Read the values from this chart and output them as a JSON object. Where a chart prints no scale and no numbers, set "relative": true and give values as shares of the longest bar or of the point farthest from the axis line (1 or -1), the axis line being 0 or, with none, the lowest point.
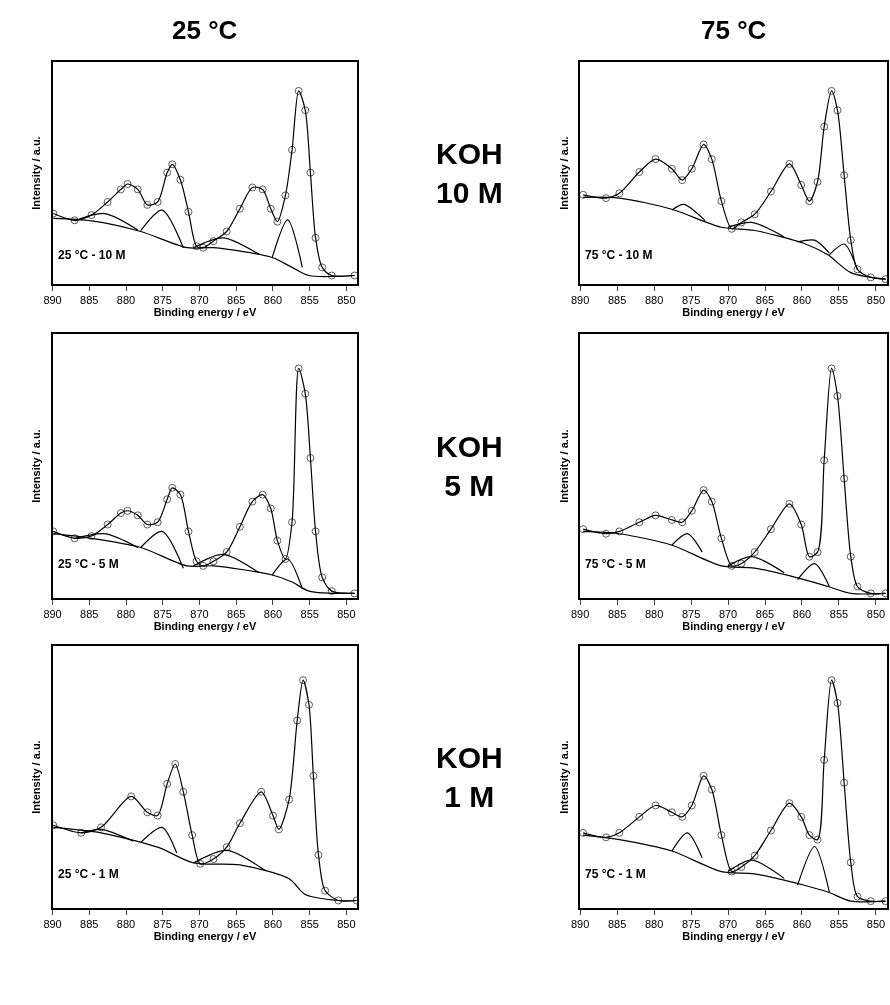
{
  "chart_data": [
    {
      "type": "scatter",
      "title": "25 °C",
      "xlabel": "Binding energy / eV",
      "ylabel": "Intensity / a.u.",
      "relative": true,
      "xlim": [
        890,
        848.5
      ],
      "xticks": [
        890,
        885,
        880,
        875,
        870,
        865,
        860,
        855,
        850
      ],
      "tick_labels": "x",
      "annotations": [
        "25 °C - 10 M"
      ],
      "series": [
        {
          "marker": "circle",
          "color": "#333333",
          "x": [
            889.9,
            887,
            884.7,
            882.5,
            880.7,
            879.8,
            878.4,
            877.1,
            875.7,
            874.4,
            873.7,
            872.6,
            871.5,
            870.4,
            869.5,
            868.1,
            866.3,
            864.5,
            862.8,
            861.4,
            860.3,
            859.4,
            858.3,
            857.4,
            856.5,
            855.6,
            854.9,
            854.2,
            853.3,
            852,
            848.9
          ],
          "values": [
            0.365,
            0.33,
            0.357,
            0.425,
            0.49,
            0.518,
            0.49,
            0.41,
            0.425,
            0.577,
            0.62,
            0.54,
            0.374,
            0.196,
            0.188,
            0.222,
            0.272,
            0.39,
            0.5,
            0.49,
            0.39,
            0.323,
            0.459,
            0.695,
            1.0,
            0.9,
            0.577,
            0.239,
            0.086,
            0.044,
            0.044
          ]
        },
        {
          "type": "line",
          "color": "#000000",
          "x": [
            889.9,
            887,
            884.7,
            882.5,
            880.7,
            879.8,
            878.4,
            877.1,
            875.7,
            874.4,
            873.7,
            872.6,
            871.5,
            870.4,
            869.5,
            868.1,
            866.3,
            864.5,
            862.8,
            861.4,
            860.3,
            859.4,
            858.3,
            857.4,
            856.5,
            855.6,
            854.9,
            854.2,
            853.3,
            852,
            848.9
          ],
          "values": [
            0.365,
            0.33,
            0.357,
            0.425,
            0.49,
            0.518,
            0.49,
            0.41,
            0.425,
            0.577,
            0.62,
            0.54,
            0.374,
            0.196,
            0.188,
            0.222,
            0.272,
            0.39,
            0.5,
            0.49,
            0.39,
            0.323,
            0.459,
            0.695,
            1.0,
            0.9,
            0.577,
            0.239,
            0.086,
            0.044,
            0.044
          ]
        },
        {
          "type": "line",
          "color": "#000000",
          "x": [
            889.9,
            884.7,
            878.0,
            871.7,
            868.1,
            860.1,
            857.4,
            855.1,
            848.9
          ],
          "values": [
            0.34,
            0.327,
            0.272,
            0.188,
            0.188,
            0.137,
            0.086,
            0.044,
            0.044
          ]
        },
        {
          "type": "line",
          "color": "#000000",
          "x": [
            887,
            882.9,
            878.4
          ],
          "values": [
            0.327,
            0.365,
            0.28
          ]
        },
        {
          "type": "line",
          "color": "#000000",
          "x": [
            878,
            875.1,
            872.2
          ],
          "values": [
            0.276,
            0.383,
            0.188
          ]
        },
        {
          "type": "line",
          "color": "#000000",
          "x": [
            870.8,
            866.8,
            861.9
          ],
          "values": [
            0.188,
            0.239,
            0.154
          ]
        },
        {
          "type": "line",
          "color": "#000000",
          "x": [
            860.1,
            858.0,
            856.0
          ],
          "values": [
            0.137,
            0.332,
            0.086
          ]
        }
      ]
    },
    {
      "type": "scatter",
      "title": "75 °C",
      "xlabel": "Binding energy / eV",
      "ylabel": "Intensity / a.u.",
      "relative": true,
      "xlim": [
        890,
        848.5
      ],
      "xticks": [
        890,
        885,
        880,
        875,
        870,
        865,
        860,
        855,
        850
      ],
      "tick_labels": "x",
      "annotations": [
        "75 °C - 10 M",
        "KOH\n10 M"
      ],
      "series": [
        {
          "marker": "circle",
          "color": "#333333",
          "x": [
            889.6,
            886.5,
            884.7,
            882.0,
            879.8,
            877.6,
            876.2,
            874.9,
            873.3,
            872.2,
            870.9,
            869.5,
            868.2,
            866.4,
            864.2,
            861.7,
            860.1,
            859.0,
            857.9,
            857.0,
            856.0,
            855.2,
            854.3,
            853.4,
            852.5,
            850.7,
            848.7
          ],
          "values": [
            0.462,
            0.445,
            0.47,
            0.58,
            0.647,
            0.597,
            0.538,
            0.597,
            0.723,
            0.647,
            0.429,
            0.286,
            0.319,
            0.361,
            0.479,
            0.622,
            0.513,
            0.429,
            0.529,
            0.815,
            1.0,
            0.9,
            0.563,
            0.227,
            0.076,
            0.034,
            0.025
          ]
        },
        {
          "type": "line",
          "color": "#000000",
          "x": [
            889.6,
            886.5,
            884.7,
            882.0,
            879.8,
            877.6,
            876.2,
            874.9,
            873.3,
            872.2,
            870.9,
            869.5,
            868.2,
            866.4,
            864.2,
            861.7,
            860.1,
            859.0,
            857.9,
            857.0,
            856.0,
            855.2,
            854.3,
            853.4,
            852.5,
            850.7,
            848.7
          ],
          "values": [
            0.462,
            0.445,
            0.47,
            0.58,
            0.647,
            0.597,
            0.538,
            0.597,
            0.723,
            0.647,
            0.429,
            0.286,
            0.319,
            0.361,
            0.479,
            0.622,
            0.513,
            0.429,
            0.529,
            0.815,
            1.0,
            0.9,
            0.563,
            0.227,
            0.076,
            0.034,
            0.025
          ]
        },
        {
          "type": "line",
          "color": "#000000",
          "x": [
            889.6,
            884.7,
            877.6,
            870.9,
            866.4,
            859.7,
            856.5,
            853.4,
            848.7
          ],
          "values": [
            0.449,
            0.445,
            0.387,
            0.294,
            0.277,
            0.21,
            0.151,
            0.059,
            0.025
          ]
        },
        {
          "type": "line",
          "color": "#000000",
          "x": [
            877.6,
            876.0,
            873.1
          ],
          "values": [
            0.382,
            0.412,
            0.328
          ]
        },
        {
          "type": "line",
          "color": "#000000",
          "x": [
            870.0,
            866.8,
            862.4
          ],
          "values": [
            0.294,
            0.319,
            0.244
          ]
        },
        {
          "type": "line",
          "color": "#000000",
          "x": [
            860.6,
            858.3,
            856.3
          ],
          "values": [
            0.218,
            0.227,
            0.16
          ]
        },
        {
          "type": "line",
          "color": "#000000",
          "x": [
            856.3,
            854.3,
            852.5
          ],
          "values": [
            0.151,
            0.207,
            0.076
          ]
        }
      ]
    },
    {
      "type": "scatter",
      "xlabel": "Binding energy / eV",
      "ylabel": "Intensity / a.u.",
      "relative": true,
      "xlim": [
        890,
        848.5
      ],
      "xticks": [
        890,
        885,
        880,
        875,
        870,
        865,
        860,
        855,
        850
      ],
      "tick_labels": "x",
      "annotations": [
        "25 °C - 5 M"
      ],
      "series": [
        {
          "marker": "circle",
          "color": "#333333",
          "x": [
            889.9,
            887,
            884.7,
            882.5,
            880.7,
            879.8,
            878.4,
            877.1,
            875.7,
            874.4,
            873.7,
            872.6,
            871.5,
            870.4,
            869.5,
            868.1,
            866.3,
            864.5,
            862.8,
            861.4,
            860.3,
            859.4,
            858.3,
            857.4,
            856.5,
            855.6,
            854.9,
            854.2,
            853.3,
            852,
            848.9
          ],
          "values": [
            0.29,
            0.26,
            0.27,
            0.32,
            0.37,
            0.38,
            0.36,
            0.32,
            0.33,
            0.43,
            0.48,
            0.45,
            0.29,
            0.16,
            0.14,
            0.16,
            0.2,
            0.31,
            0.42,
            0.45,
            0.39,
            0.25,
            0.17,
            0.33,
            1.0,
            0.89,
            0.61,
            0.29,
            0.09,
            0.03,
            0.02
          ]
        },
        {
          "type": "line",
          "color": "#000000",
          "x": [
            889.9,
            887,
            884.7,
            882.5,
            880.7,
            879.8,
            878.4,
            877.1,
            875.7,
            874.4,
            873.7,
            872.6,
            871.5,
            870.4,
            869.5,
            868.1,
            866.3,
            864.5,
            862.8,
            861.4,
            860.3,
            859.4,
            858.3,
            857.4,
            856.5,
            855.6,
            854.9,
            854.2,
            853.3,
            852,
            848.9
          ],
          "values": [
            0.29,
            0.26,
            0.27,
            0.32,
            0.37,
            0.38,
            0.36,
            0.32,
            0.33,
            0.43,
            0.48,
            0.45,
            0.29,
            0.16,
            0.14,
            0.16,
            0.2,
            0.31,
            0.42,
            0.45,
            0.39,
            0.25,
            0.17,
            0.33,
            1.0,
            0.89,
            0.61,
            0.29,
            0.09,
            0.03,
            0.02
          ]
        },
        {
          "type": "line",
          "color": "#000000",
          "x": [
            889.9,
            884.7,
            878.0,
            871.7,
            868.1,
            860.1,
            857.4,
            855.1,
            848.9
          ],
          "values": [
            0.28,
            0.26,
            0.22,
            0.14,
            0.14,
            0.1,
            0.07,
            0.03,
            0.02
          ]
        },
        {
          "type": "line",
          "color": "#000000",
          "x": [
            887,
            882.9,
            878.4
          ],
          "values": [
            0.26,
            0.28,
            0.22
          ]
        },
        {
          "type": "line",
          "color": "#000000",
          "x": [
            878,
            875.1,
            872.2
          ],
          "values": [
            0.22,
            0.29,
            0.13
          ]
        },
        {
          "type": "line",
          "color": "#000000",
          "x": [
            870.8,
            866.8,
            861.9
          ],
          "values": [
            0.14,
            0.19,
            0.11
          ]
        },
        {
          "type": "line",
          "color": "#000000",
          "x": [
            860.1,
            858.0,
            856.0
          ],
          "values": [
            0.1,
            0.17,
            0.04
          ]
        }
      ]
    },
    {
      "type": "scatter",
      "xlabel": "Binding energy / eV",
      "ylabel": "Intensity / a.u.",
      "relative": true,
      "xlim": [
        890,
        848.5
      ],
      "xticks": [
        890,
        885,
        880,
        875,
        870,
        865,
        860,
        855,
        850
      ],
      "tick_labels": "x",
      "annotations": [
        "75 °C - 5 M",
        "KOH\n5 M"
      ],
      "series": [
        {
          "marker": "circle",
          "color": "#333333",
          "x": [
            889.6,
            886.5,
            884.7,
            882.0,
            879.8,
            877.6,
            876.2,
            874.9,
            873.3,
            872.2,
            870.9,
            869.5,
            868.2,
            866.4,
            864.2,
            861.7,
            860.1,
            859.0,
            857.9,
            857.0,
            856.0,
            855.2,
            854.3,
            853.4,
            852.5,
            850.7,
            848.7
          ],
          "values": [
            0.3,
            0.28,
            0.29,
            0.33,
            0.36,
            0.34,
            0.33,
            0.38,
            0.47,
            0.42,
            0.26,
            0.14,
            0.15,
            0.2,
            0.3,
            0.41,
            0.32,
            0.18,
            0.2,
            0.6,
            1.0,
            0.88,
            0.52,
            0.18,
            0.05,
            0.02,
            0.02
          ]
        },
        {
          "type": "line",
          "color": "#000000",
          "x": [
            889.6,
            886.5,
            884.7,
            882.0,
            879.8,
            877.6,
            876.2,
            874.9,
            873.3,
            872.2,
            870.9,
            869.5,
            868.2,
            866.4,
            864.2,
            861.7,
            860.1,
            859.0,
            857.9,
            857.0,
            856.0,
            855.2,
            854.3,
            853.4,
            852.5,
            850.7,
            848.7
          ],
          "values": [
            0.3,
            0.28,
            0.29,
            0.33,
            0.36,
            0.34,
            0.33,
            0.38,
            0.47,
            0.42,
            0.26,
            0.14,
            0.15,
            0.2,
            0.3,
            0.41,
            0.32,
            0.18,
            0.2,
            0.6,
            1.0,
            0.88,
            0.52,
            0.18,
            0.05,
            0.02,
            0.02
          ]
        },
        {
          "type": "line",
          "color": "#000000",
          "x": [
            889.6,
            884.7,
            877.6,
            870.9,
            866.4,
            859.7,
            856.5,
            853.4,
            848.7
          ],
          "values": [
            0.29,
            0.28,
            0.23,
            0.14,
            0.13,
            0.08,
            0.05,
            0.02,
            0.02
          ]
        },
        {
          "type": "line",
          "color": "#000000",
          "x": [
            877.6,
            875.5,
            873.5
          ],
          "values": [
            0.23,
            0.28,
            0.2
          ]
        },
        {
          "type": "line",
          "color": "#000000",
          "x": [
            870.0,
            866.8,
            862.4
          ],
          "values": [
            0.14,
            0.18,
            0.11
          ]
        },
        {
          "type": "line",
          "color": "#000000",
          "x": [
            860.6,
            858.3,
            856.3
          ],
          "values": [
            0.08,
            0.15,
            0.05
          ]
        }
      ]
    },
    {
      "type": "scatter",
      "xlabel": "Binding energy / eV",
      "ylabel": "Intensity / a.u.",
      "relative": true,
      "xlim": [
        890,
        848.5
      ],
      "xticks": [
        890,
        885,
        880,
        875,
        870,
        865,
        860,
        855,
        850
      ],
      "tick_labels": "x",
      "annotations": [
        "25 °C - 1 M"
      ],
      "series": [
        {
          "marker": "circle",
          "color": "#333333",
          "x": [
            889.9,
            886.1,
            883.4,
            879.3,
            877.1,
            875.7,
            874.4,
            873.3,
            872.2,
            871.0,
            869.9,
            868.1,
            866.3,
            864.5,
            861.6,
            860.0,
            859.2,
            857.8,
            856.7,
            855.9,
            855.1,
            854.5,
            853.8,
            852.9,
            851.1,
            848.6
          ],
          "values": [
            0.363,
            0.33,
            0.354,
            0.49,
            0.42,
            0.406,
            0.545,
            0.632,
            0.51,
            0.32,
            0.194,
            0.215,
            0.267,
            0.372,
            0.51,
            0.406,
            0.345,
            0.476,
            0.823,
            1.0,
            0.892,
            0.58,
            0.233,
            0.076,
            0.033,
            0.033
          ]
        },
        {
          "type": "line",
          "color": "#000000",
          "x": [
            889.9,
            886.1,
            883.4,
            879.3,
            877.1,
            875.7,
            874.4,
            873.3,
            872.2,
            871.0,
            869.9,
            868.1,
            866.3,
            864.5,
            861.6,
            860.0,
            859.2,
            857.8,
            856.7,
            855.9,
            855.1,
            854.5,
            853.8,
            852.9,
            851.1,
            848.6
          ],
          "values": [
            0.363,
            0.33,
            0.354,
            0.49,
            0.42,
            0.406,
            0.545,
            0.632,
            0.51,
            0.32,
            0.194,
            0.215,
            0.267,
            0.372,
            0.51,
            0.406,
            0.345,
            0.476,
            0.823,
            1.0,
            0.892,
            0.58,
            0.233,
            0.076,
            0.033,
            0.033
          ]
        },
        {
          "type": "line",
          "color": "#000000",
          "x": [
            889.9,
            883.4,
            875.7,
            870.8,
            864.5,
            857.8,
            855.6,
            851.1,
            848.6
          ],
          "values": [
            0.354,
            0.33,
            0.267,
            0.198,
            0.189,
            0.128,
            0.059,
            0.033,
            0.033
          ]
        },
        {
          "type": "line",
          "color": "#000000",
          "x": [
            886.1,
            883.4,
            879.0
          ],
          "values": [
            0.33,
            0.345,
            0.293
          ]
        },
        {
          "type": "line",
          "color": "#000000",
          "x": [
            878,
            875.1,
            873.1
          ],
          "values": [
            0.288,
            0.354,
            0.241
          ]
        },
        {
          "type": "line",
          "color": "#000000",
          "x": [
            870.8,
            866.3,
            861.0
          ],
          "values": [
            0.198,
            0.253,
            0.163
          ]
        }
      ]
    },
    {
      "type": "scatter",
      "xlabel": "Binding energy / eV",
      "ylabel": "Intensity / a.u.",
      "relative": true,
      "xlim": [
        890,
        848.5
      ],
      "xticks": [
        890,
        885,
        880,
        875,
        870,
        865,
        860,
        855,
        850
      ],
      "tick_labels": "x",
      "annotations": [
        "75 °C - 1 M",
        "KOH\n1 M"
      ],
      "series": [
        {
          "marker": "circle",
          "color": "#333333",
          "x": [
            889.6,
            886.5,
            884.7,
            882.0,
            879.8,
            877.6,
            876.2,
            874.9,
            873.3,
            872.2,
            870.9,
            869.5,
            868.2,
            866.4,
            864.2,
            861.7,
            860.1,
            859.0,
            857.9,
            857.0,
            856.0,
            855.2,
            854.3,
            853.4,
            852.5,
            850.7,
            848.7
          ],
          "values": [
            0.33,
            0.31,
            0.33,
            0.4,
            0.45,
            0.42,
            0.4,
            0.45,
            0.58,
            0.52,
            0.32,
            0.16,
            0.18,
            0.23,
            0.34,
            0.46,
            0.4,
            0.32,
            0.3,
            0.65,
            1.0,
            0.9,
            0.55,
            0.2,
            0.05,
            0.03,
            0.03
          ]
        },
        {
          "type": "line",
          "color": "#000000",
          "x": [
            889.6,
            886.5,
            884.7,
            882.0,
            879.8,
            877.6,
            876.2,
            874.9,
            873.3,
            872.2,
            870.9,
            869.5,
            868.2,
            866.4,
            864.2,
            861.7,
            860.1,
            859.0,
            857.9,
            857.0,
            856.0,
            855.2,
            854.3,
            853.4,
            852.5,
            850.7,
            848.7
          ],
          "values": [
            0.33,
            0.31,
            0.33,
            0.4,
            0.45,
            0.42,
            0.4,
            0.45,
            0.58,
            0.52,
            0.32,
            0.16,
            0.18,
            0.23,
            0.34,
            0.46,
            0.4,
            0.32,
            0.3,
            0.65,
            1.0,
            0.9,
            0.55,
            0.2,
            0.05,
            0.03,
            0.03
          ]
        },
        {
          "type": "line",
          "color": "#000000",
          "x": [
            889.6,
            884.7,
            877.6,
            870.9,
            866.4,
            859.7,
            856.5,
            853.4,
            848.7
          ],
          "values": [
            0.32,
            0.3,
            0.25,
            0.16,
            0.15,
            0.1,
            0.07,
            0.03,
            0.03
          ]
        },
        {
          "type": "line",
          "color": "#000000",
          "x": [
            877.6,
            875.5,
            873.5
          ],
          "values": [
            0.25,
            0.33,
            0.22
          ]
        },
        {
          "type": "line",
          "color": "#000000",
          "x": [
            870.0,
            866.8,
            862.4
          ],
          "values": [
            0.16,
            0.21,
            0.13
          ]
        },
        {
          "type": "line",
          "color": "#000000",
          "x": [
            860.6,
            858.3,
            856.3
          ],
          "values": [
            0.1,
            0.27,
            0.07
          ]
        }
      ]
    }
  ]
}
